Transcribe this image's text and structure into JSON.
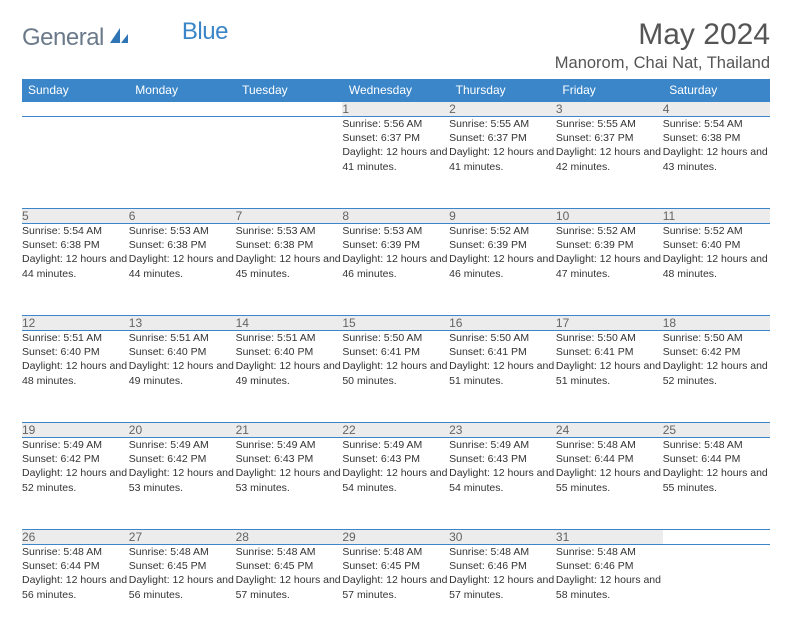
{
  "logo": {
    "part1": "General",
    "part2": "Blue"
  },
  "title": "May 2024",
  "location": "Manorom, Chai Nat, Thailand",
  "daysOfWeek": [
    "Sunday",
    "Monday",
    "Tuesday",
    "Wednesday",
    "Thursday",
    "Friday",
    "Saturday"
  ],
  "colors": {
    "header_bg": "#3a86c8",
    "header_text": "#ffffff",
    "daynum_bg": "#ececec",
    "daynum_text": "#646464",
    "body_text": "#333333",
    "rule": "#3a86c8",
    "logo_gray": "#6b7a8a",
    "logo_blue": "#3a86c8"
  },
  "weeks": [
    [
      null,
      null,
      null,
      {
        "num": "1",
        "sunrise": "Sunrise: 5:56 AM",
        "sunset": "Sunset: 6:37 PM",
        "daylight": "Daylight: 12 hours and 41 minutes."
      },
      {
        "num": "2",
        "sunrise": "Sunrise: 5:55 AM",
        "sunset": "Sunset: 6:37 PM",
        "daylight": "Daylight: 12 hours and 41 minutes."
      },
      {
        "num": "3",
        "sunrise": "Sunrise: 5:55 AM",
        "sunset": "Sunset: 6:37 PM",
        "daylight": "Daylight: 12 hours and 42 minutes."
      },
      {
        "num": "4",
        "sunrise": "Sunrise: 5:54 AM",
        "sunset": "Sunset: 6:38 PM",
        "daylight": "Daylight: 12 hours and 43 minutes."
      }
    ],
    [
      {
        "num": "5",
        "sunrise": "Sunrise: 5:54 AM",
        "sunset": "Sunset: 6:38 PM",
        "daylight": "Daylight: 12 hours and 44 minutes."
      },
      {
        "num": "6",
        "sunrise": "Sunrise: 5:53 AM",
        "sunset": "Sunset: 6:38 PM",
        "daylight": "Daylight: 12 hours and 44 minutes."
      },
      {
        "num": "7",
        "sunrise": "Sunrise: 5:53 AM",
        "sunset": "Sunset: 6:38 PM",
        "daylight": "Daylight: 12 hours and 45 minutes."
      },
      {
        "num": "8",
        "sunrise": "Sunrise: 5:53 AM",
        "sunset": "Sunset: 6:39 PM",
        "daylight": "Daylight: 12 hours and 46 minutes."
      },
      {
        "num": "9",
        "sunrise": "Sunrise: 5:52 AM",
        "sunset": "Sunset: 6:39 PM",
        "daylight": "Daylight: 12 hours and 46 minutes."
      },
      {
        "num": "10",
        "sunrise": "Sunrise: 5:52 AM",
        "sunset": "Sunset: 6:39 PM",
        "daylight": "Daylight: 12 hours and 47 minutes."
      },
      {
        "num": "11",
        "sunrise": "Sunrise: 5:52 AM",
        "sunset": "Sunset: 6:40 PM",
        "daylight": "Daylight: 12 hours and 48 minutes."
      }
    ],
    [
      {
        "num": "12",
        "sunrise": "Sunrise: 5:51 AM",
        "sunset": "Sunset: 6:40 PM",
        "daylight": "Daylight: 12 hours and 48 minutes."
      },
      {
        "num": "13",
        "sunrise": "Sunrise: 5:51 AM",
        "sunset": "Sunset: 6:40 PM",
        "daylight": "Daylight: 12 hours and 49 minutes."
      },
      {
        "num": "14",
        "sunrise": "Sunrise: 5:51 AM",
        "sunset": "Sunset: 6:40 PM",
        "daylight": "Daylight: 12 hours and 49 minutes."
      },
      {
        "num": "15",
        "sunrise": "Sunrise: 5:50 AM",
        "sunset": "Sunset: 6:41 PM",
        "daylight": "Daylight: 12 hours and 50 minutes."
      },
      {
        "num": "16",
        "sunrise": "Sunrise: 5:50 AM",
        "sunset": "Sunset: 6:41 PM",
        "daylight": "Daylight: 12 hours and 51 minutes."
      },
      {
        "num": "17",
        "sunrise": "Sunrise: 5:50 AM",
        "sunset": "Sunset: 6:41 PM",
        "daylight": "Daylight: 12 hours and 51 minutes."
      },
      {
        "num": "18",
        "sunrise": "Sunrise: 5:50 AM",
        "sunset": "Sunset: 6:42 PM",
        "daylight": "Daylight: 12 hours and 52 minutes."
      }
    ],
    [
      {
        "num": "19",
        "sunrise": "Sunrise: 5:49 AM",
        "sunset": "Sunset: 6:42 PM",
        "daylight": "Daylight: 12 hours and 52 minutes."
      },
      {
        "num": "20",
        "sunrise": "Sunrise: 5:49 AM",
        "sunset": "Sunset: 6:42 PM",
        "daylight": "Daylight: 12 hours and 53 minutes."
      },
      {
        "num": "21",
        "sunrise": "Sunrise: 5:49 AM",
        "sunset": "Sunset: 6:43 PM",
        "daylight": "Daylight: 12 hours and 53 minutes."
      },
      {
        "num": "22",
        "sunrise": "Sunrise: 5:49 AM",
        "sunset": "Sunset: 6:43 PM",
        "daylight": "Daylight: 12 hours and 54 minutes."
      },
      {
        "num": "23",
        "sunrise": "Sunrise: 5:49 AM",
        "sunset": "Sunset: 6:43 PM",
        "daylight": "Daylight: 12 hours and 54 minutes."
      },
      {
        "num": "24",
        "sunrise": "Sunrise: 5:48 AM",
        "sunset": "Sunset: 6:44 PM",
        "daylight": "Daylight: 12 hours and 55 minutes."
      },
      {
        "num": "25",
        "sunrise": "Sunrise: 5:48 AM",
        "sunset": "Sunset: 6:44 PM",
        "daylight": "Daylight: 12 hours and 55 minutes."
      }
    ],
    [
      {
        "num": "26",
        "sunrise": "Sunrise: 5:48 AM",
        "sunset": "Sunset: 6:44 PM",
        "daylight": "Daylight: 12 hours and 56 minutes."
      },
      {
        "num": "27",
        "sunrise": "Sunrise: 5:48 AM",
        "sunset": "Sunset: 6:45 PM",
        "daylight": "Daylight: 12 hours and 56 minutes."
      },
      {
        "num": "28",
        "sunrise": "Sunrise: 5:48 AM",
        "sunset": "Sunset: 6:45 PM",
        "daylight": "Daylight: 12 hours and 57 minutes."
      },
      {
        "num": "29",
        "sunrise": "Sunrise: 5:48 AM",
        "sunset": "Sunset: 6:45 PM",
        "daylight": "Daylight: 12 hours and 57 minutes."
      },
      {
        "num": "30",
        "sunrise": "Sunrise: 5:48 AM",
        "sunset": "Sunset: 6:46 PM",
        "daylight": "Daylight: 12 hours and 57 minutes."
      },
      {
        "num": "31",
        "sunrise": "Sunrise: 5:48 AM",
        "sunset": "Sunset: 6:46 PM",
        "daylight": "Daylight: 12 hours and 58 minutes."
      },
      null
    ]
  ]
}
